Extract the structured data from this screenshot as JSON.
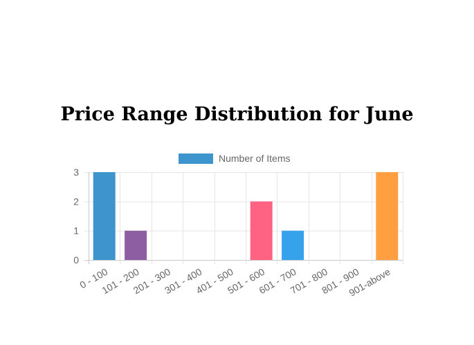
{
  "chart_data": {
    "type": "bar",
    "title": "Price Range Distribution for June",
    "categories": [
      "0 - 100",
      "101 - 200",
      "201 - 300",
      "301 - 400",
      "401 - 500",
      "501 - 600",
      "601 - 700",
      "701 - 800",
      "801 - 900",
      "901-above"
    ],
    "series": [
      {
        "name": "Number of Items",
        "values": [
          3,
          1,
          0,
          0,
          0,
          2,
          1,
          0,
          0,
          3
        ],
        "colors": [
          "#3e95cd",
          "#8e5ea2",
          "#3cba9f",
          "#e8c3b9",
          "#c45850",
          "#ff6384",
          "#36a2eb",
          "#cc65fe",
          "#ffce56",
          "#ff9f40"
        ]
      }
    ],
    "ylim": [
      0,
      3
    ],
    "yticks": [
      0,
      1,
      2,
      3
    ],
    "grid": true,
    "legend_position": "top",
    "legend_color": "#3e95cd"
  }
}
